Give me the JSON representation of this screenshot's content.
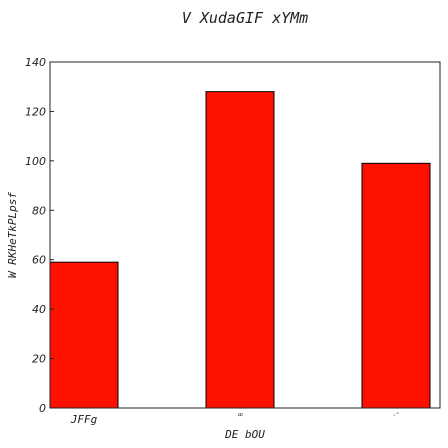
{
  "chart_data": {
    "type": "bar",
    "title": "V XudaGIF xYMm",
    "xlabel": "DE bOU",
    "ylabel": "W RKHeTkPLpsf",
    "categories": [
      "JFFg",
      "ꝏ",
      "ᵥᵐ"
    ],
    "values": [
      59,
      128,
      99
    ],
    "ylim": [
      0,
      140
    ],
    "yticks": [
      0,
      20,
      40,
      60,
      80,
      100,
      120,
      140
    ],
    "bar_color": "#ff1100",
    "bar_edge_color": "#000000",
    "grid": false,
    "legend": false
  }
}
